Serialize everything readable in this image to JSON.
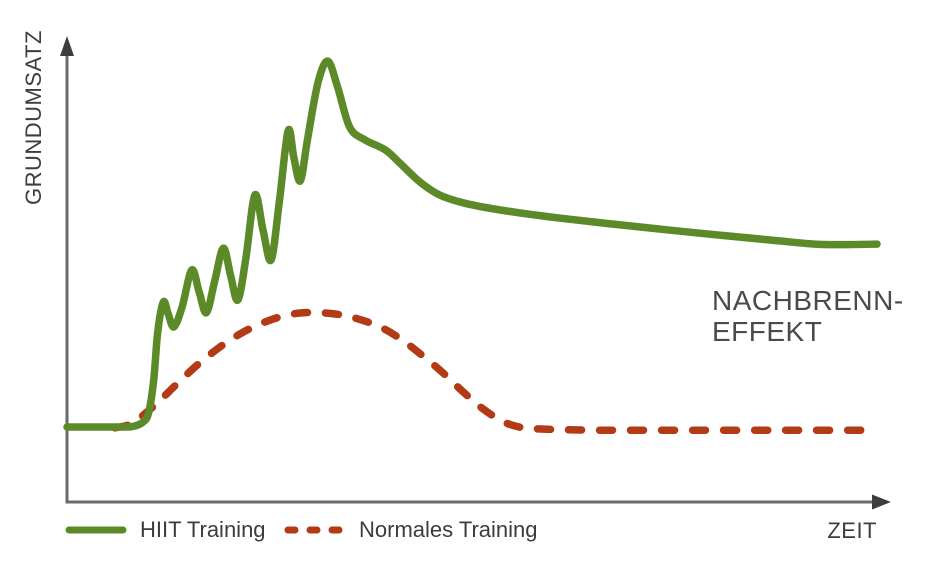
{
  "chart_data": {
    "type": "line",
    "xlabel": "ZEIT",
    "ylabel": "GRUNDUMSATZ",
    "annotation_lines": [
      "NACHBRENN-",
      "EFFEKT"
    ],
    "x_range": [
      0,
      100
    ],
    "y_range": [
      0,
      100
    ],
    "grid": false,
    "ticks": "none",
    "legend_position": "bottom-left",
    "series": [
      {
        "name": "HIIT Training",
        "style": "solid",
        "color": "#5c8a28",
        "points": [
          [
            0,
            16.7
          ],
          [
            5,
            16.7
          ],
          [
            8,
            16.8
          ],
          [
            9.4,
            17.8
          ],
          [
            10.1,
            20.0
          ],
          [
            10.7,
            27.0
          ],
          [
            11.2,
            37.5
          ],
          [
            11.9,
            44.2
          ],
          [
            12.5,
            41.5
          ],
          [
            13.2,
            38.7
          ],
          [
            14.2,
            43.0
          ],
          [
            15.4,
            51.2
          ],
          [
            16.3,
            46.5
          ],
          [
            17.2,
            41.8
          ],
          [
            18.2,
            48.5
          ],
          [
            19.3,
            56.0
          ],
          [
            20.2,
            50.0
          ],
          [
            21.1,
            44.6
          ],
          [
            22.1,
            54.0
          ],
          [
            23.2,
            67.7
          ],
          [
            24.2,
            60.0
          ],
          [
            25.2,
            53.4
          ],
          [
            26.2,
            66.0
          ],
          [
            27.3,
            81.8
          ],
          [
            28.0,
            76.0
          ],
          [
            28.8,
            70.8
          ],
          [
            29.7,
            80.0
          ],
          [
            31.0,
            92.5
          ],
          [
            32.2,
            97.1
          ],
          [
            33.4,
            91.5
          ],
          [
            34.9,
            82.6
          ],
          [
            36.8,
            79.8
          ],
          [
            39.3,
            77.6
          ],
          [
            41.1,
            74.7
          ],
          [
            43.6,
            70.5
          ],
          [
            46.0,
            67.7
          ],
          [
            49.1,
            65.9
          ],
          [
            53.5,
            64.4
          ],
          [
            60.9,
            62.6
          ],
          [
            69.5,
            60.9
          ],
          [
            78.1,
            59.3
          ],
          [
            86.8,
            57.8
          ],
          [
            92.3,
            56.9
          ],
          [
            96.0,
            56.8
          ],
          [
            100,
            56.9
          ]
        ]
      },
      {
        "name": "Normales Training",
        "style": "dashed",
        "color": "#b23a15",
        "points": [
          [
            5.9,
            16.5
          ],
          [
            8.0,
            17.4
          ],
          [
            9.6,
            19.6
          ],
          [
            11.5,
            22.6
          ],
          [
            13.7,
            26.4
          ],
          [
            16.2,
            30.5
          ],
          [
            18.9,
            34.3
          ],
          [
            21.6,
            37.4
          ],
          [
            24.2,
            39.6
          ],
          [
            26.7,
            41.1
          ],
          [
            29.1,
            41.8
          ],
          [
            31.5,
            41.8
          ],
          [
            34.0,
            41.3
          ],
          [
            36.4,
            40.2
          ],
          [
            38.9,
            38.5
          ],
          [
            41.4,
            35.8
          ],
          [
            43.8,
            32.5
          ],
          [
            46.3,
            28.8
          ],
          [
            48.8,
            24.6
          ],
          [
            51.2,
            20.9
          ],
          [
            53.5,
            18.2
          ],
          [
            55.4,
            16.9
          ],
          [
            57.8,
            16.3
          ],
          [
            65.8,
            16.0
          ],
          [
            78.1,
            16.0
          ],
          [
            90.5,
            16.0
          ],
          [
            99.9,
            16.0
          ]
        ]
      }
    ]
  },
  "colors": {
    "background": "#ffffff",
    "axis_line": "#6a6a6a",
    "axis_arrow": "#3d3d3d",
    "label_text": "#3d3d3d",
    "annotation_text": "#4a4a4a"
  }
}
